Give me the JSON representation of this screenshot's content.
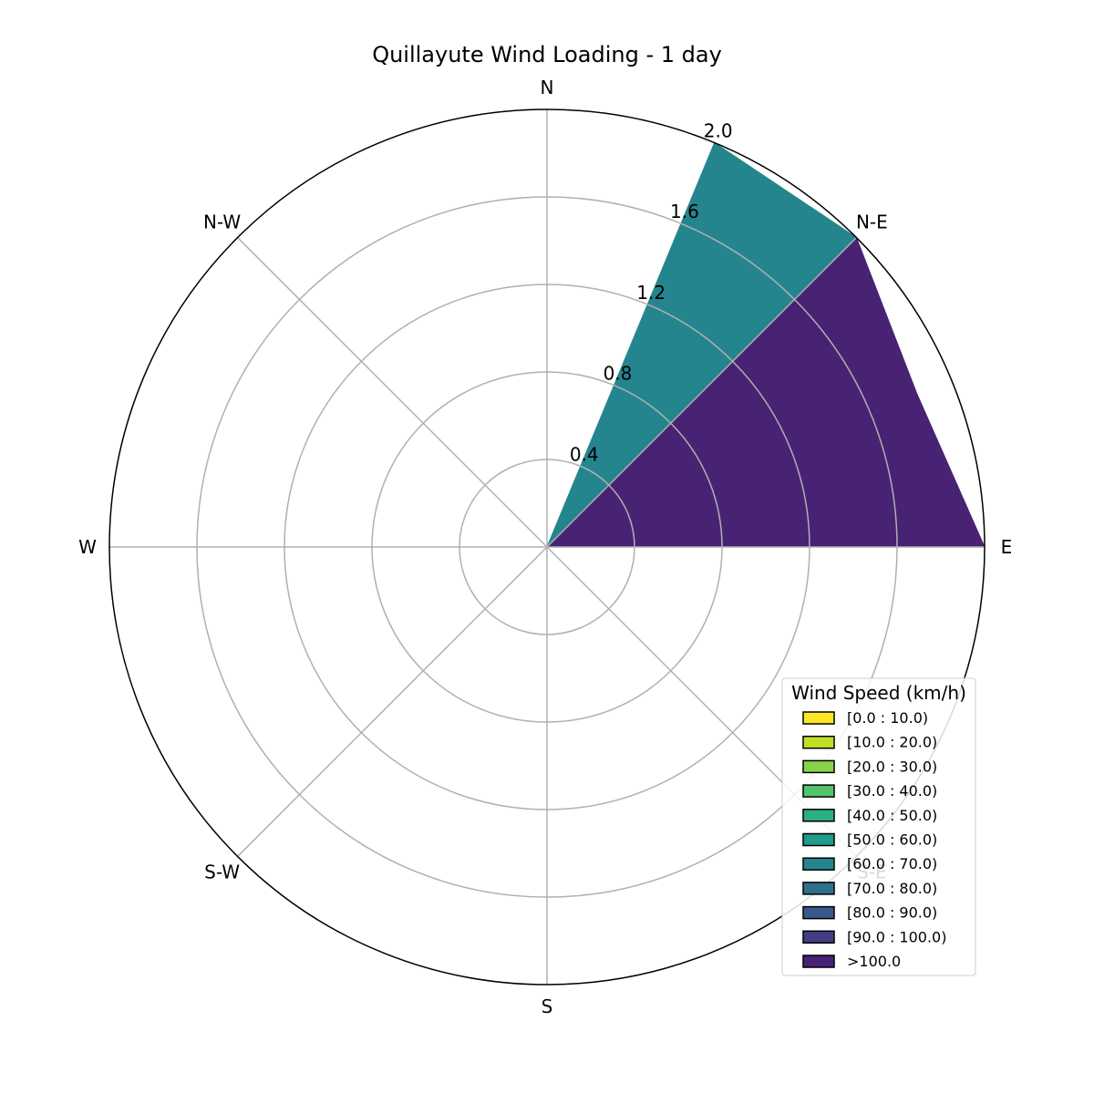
{
  "chart_data": {
    "type": "windrose",
    "title": "Quillayute Wind Loading - 1 day",
    "directions": [
      "E",
      "N-E",
      "N",
      "N-W",
      "W",
      "S-W",
      "S",
      "S-E"
    ],
    "r_ticks": [
      "0.4",
      "0.8",
      "1.2",
      "1.6",
      "2.0"
    ],
    "rmax": 2.0,
    "grid": true,
    "legend": {
      "title": "Wind Speed (km/h)",
      "placement": "lower-right",
      "bins": [
        {
          "label": "[0.0 : 10.0)",
          "color": "#fde725"
        },
        {
          "label": "[10.0 : 20.0)",
          "color": "#c2df23"
        },
        {
          "label": "[20.0 : 30.0)",
          "color": "#86d549"
        },
        {
          "label": "[30.0 : 40.0)",
          "color": "#52c569"
        },
        {
          "label": "[40.0 : 50.0)",
          "color": "#2ab07f"
        },
        {
          "label": "[50.0 : 60.0)",
          "color": "#1e9b8a"
        },
        {
          "label": "[60.0 : 70.0)",
          "color": "#25858e"
        },
        {
          "label": "[70.0 : 80.0)",
          "color": "#2d708e"
        },
        {
          "label": "[80.0 : 90.0)",
          "color": "#38588c"
        },
        {
          "label": "[90.0 : 100.0)",
          "color": "#433e85"
        },
        {
          "label": ">100.0",
          "color": "#482374"
        }
      ]
    },
    "radial_profiles": [
      {
        "name": ">100.0",
        "color": "#482374",
        "points": [
          [
            0,
            2.0
          ],
          [
            22.5,
            1.83
          ],
          [
            45,
            2.0
          ]
        ]
      },
      {
        "name": "[60.0 : 70.0)",
        "color": "#25858e",
        "points": [
          [
            45,
            2.0
          ],
          [
            67.5,
            2.0
          ]
        ]
      }
    ]
  }
}
